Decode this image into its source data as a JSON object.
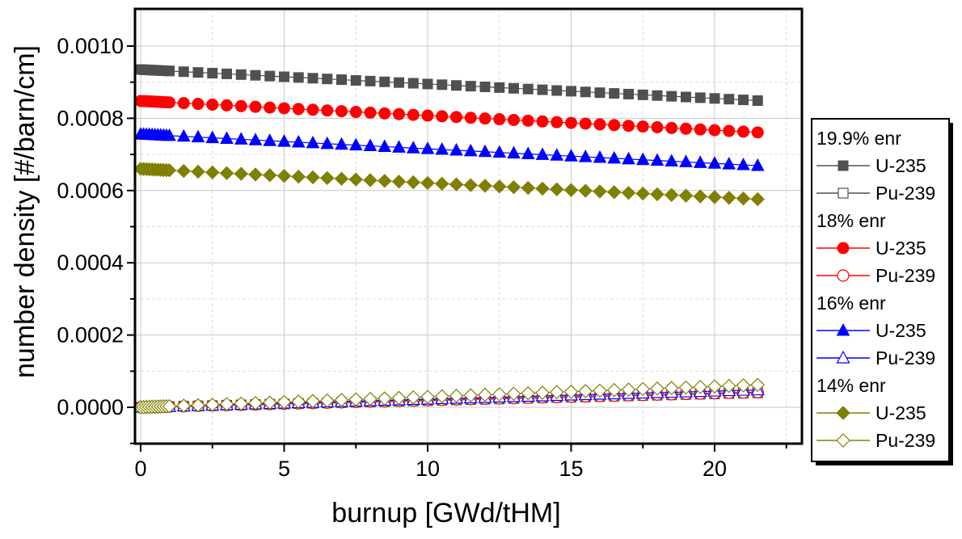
{
  "chart_data": {
    "type": "line",
    "xlabel": "burnup [GWd/tHM]",
    "ylabel": "number density [#/barn/cm]",
    "xlim": [
      -0.2,
      23
    ],
    "ylim": [
      -0.0001,
      0.0011
    ],
    "xticks": [
      "0",
      "5",
      "10",
      "15",
      "20"
    ],
    "yticks": [
      "0.0000",
      "0.0002",
      "0.0004",
      "0.0006",
      "0.0008",
      "0.0010"
    ],
    "grid": true,
    "legend_position": "outside-right",
    "groups": [
      {
        "label": "19.9% enr",
        "color": "#505050",
        "u235": {
          "name": "U-235",
          "marker": "square",
          "start": 0.000935,
          "end": 0.000849
        },
        "pu239": {
          "name": "Pu-239",
          "marker": "square-open",
          "start": 0.0,
          "end": 4e-05
        }
      },
      {
        "label": "18% enr",
        "color": "#ff0000",
        "u235": {
          "name": "U-235",
          "marker": "circle",
          "start": 0.000848,
          "end": 0.000761
        },
        "pu239": {
          "name": "Pu-239",
          "marker": "circle-open",
          "start": 0.0,
          "end": 4.2e-05
        }
      },
      {
        "label": "16% enr",
        "color": "#0000ff",
        "u235": {
          "name": "U-235",
          "marker": "triangle",
          "start": 0.000756,
          "end": 0.000669
        },
        "pu239": {
          "name": "Pu-239",
          "marker": "triangle-open",
          "start": 0.0,
          "end": 4.8e-05
        }
      },
      {
        "label": "14% enr",
        "color": "#808000",
        "u235": {
          "name": "U-235",
          "marker": "diamond",
          "start": 0.00066,
          "end": 0.000576
        },
        "pu239": {
          "name": "Pu-239",
          "marker": "diamond-open",
          "start": 0.0,
          "end": 6.2e-05
        }
      }
    ],
    "x_points": [
      0,
      0.1,
      0.2,
      0.3,
      0.4,
      0.5,
      0.6,
      0.7,
      0.8,
      0.9,
      1.0,
      1.5,
      2.0,
      2.5,
      3.0,
      3.5,
      4.0,
      4.5,
      5.0,
      5.5,
      6.0,
      6.5,
      7.0,
      7.5,
      8.0,
      8.5,
      9.0,
      9.5,
      10.0,
      10.5,
      11.0,
      11.5,
      12.0,
      12.5,
      13.0,
      13.5,
      14.0,
      14.5,
      15.0,
      15.5,
      16.0,
      16.5,
      17.0,
      17.5,
      18.0,
      18.5,
      19.0,
      19.5,
      20.0,
      20.5,
      21.0,
      21.5
    ]
  }
}
